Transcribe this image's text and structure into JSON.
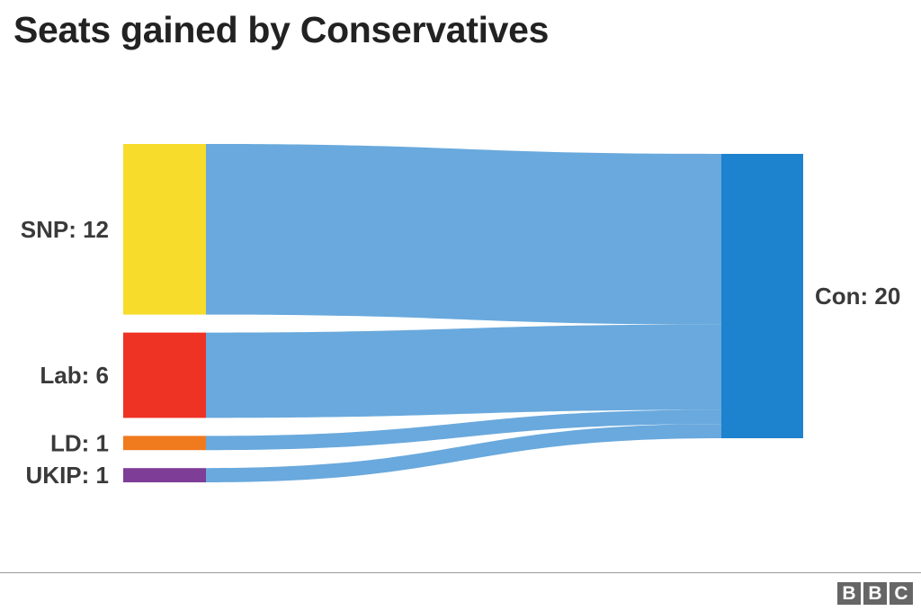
{
  "title": "Seats gained by Conservatives",
  "chart_data": {
    "type": "sankey",
    "title": "Seats gained by Conservatives",
    "sources": [
      {
        "name": "SNP",
        "label": "SNP: 12",
        "value": 12,
        "color": "#f8dc2c"
      },
      {
        "name": "Lab",
        "label": "Lab: 6",
        "value": 6,
        "color": "#ee3224"
      },
      {
        "name": "LD",
        "label": "LD: 1",
        "value": 1,
        "color": "#f07a1e"
      },
      {
        "name": "UKIP",
        "label": "UKIP: 1",
        "value": 1,
        "color": "#7e3d97"
      }
    ],
    "target": {
      "name": "Con",
      "label": "Con: 20",
      "value": 20,
      "color": "#1e83cf"
    },
    "flow_color": "#69a9dd"
  },
  "footer": {
    "logo": [
      "B",
      "B",
      "C"
    ]
  }
}
